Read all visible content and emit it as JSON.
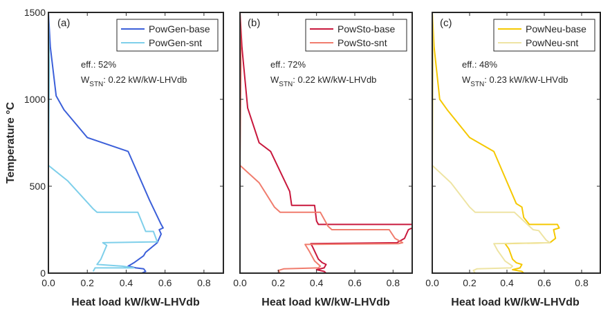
{
  "chart_data": [
    {
      "type": "line",
      "panel_label": "(a)",
      "xlabel": "Heat load kW/kW-LHVdb",
      "ylabel": "Temperature °C",
      "xlim": [
        0,
        0.9
      ],
      "ylim": [
        0,
        1500
      ],
      "xticks": [
        0,
        0.2,
        0.4,
        0.6,
        0.8
      ],
      "xtick_labels": [
        "0.0",
        "0.2",
        "0.4",
        "0.6",
        "0.8"
      ],
      "yticks": [
        0,
        500,
        1000,
        1500
      ],
      "ytick_labels": [
        "0",
        "500",
        "1000",
        "1500"
      ],
      "legend_position": "top-right",
      "annotations": {
        "eff": "eff.: 52%",
        "wstn_main": "W",
        "wstn_sub": "STN",
        "wstn_value": ": 0.22 kW/kW-LHVdb"
      },
      "series": [
        {
          "name": "PowGen-base",
          "color": "#3b5fd9",
          "points": [
            [
              0.0,
              1500
            ],
            [
              0.01,
              1300
            ],
            [
              0.04,
              1020
            ],
            [
              0.08,
              940
            ],
            [
              0.2,
              780
            ],
            [
              0.41,
              700
            ],
            [
              0.52,
              420
            ],
            [
              0.55,
              350
            ],
            [
              0.58,
              280
            ],
            [
              0.59,
              260
            ],
            [
              0.57,
              250
            ],
            [
              0.58,
              225
            ],
            [
              0.56,
              175
            ],
            [
              0.5,
              120
            ],
            [
              0.49,
              100
            ],
            [
              0.44,
              60
            ],
            [
              0.41,
              40
            ],
            [
              0.45,
              30
            ],
            [
              0.49,
              25
            ],
            [
              0.5,
              10
            ],
            [
              0.48,
              0
            ]
          ]
        },
        {
          "name": "PowGen-snt",
          "color": "#7ecfea",
          "points": [
            [
              0.0,
              1500
            ],
            [
              0.005,
              1200
            ],
            [
              0.0,
              620
            ],
            [
              0.1,
              530
            ],
            [
              0.23,
              370
            ],
            [
              0.25,
              350
            ],
            [
              0.46,
              350
            ],
            [
              0.5,
              240
            ],
            [
              0.54,
              240
            ],
            [
              0.56,
              180
            ],
            [
              0.28,
              175
            ],
            [
              0.3,
              160
            ],
            [
              0.27,
              80
            ],
            [
              0.25,
              50
            ],
            [
              0.38,
              40
            ],
            [
              0.44,
              30
            ],
            [
              0.24,
              30
            ],
            [
              0.23,
              10
            ]
          ]
        }
      ]
    },
    {
      "type": "line",
      "panel_label": "(b)",
      "xlabel": "Heat load kW/kW-LHVdb",
      "xlim": [
        0,
        0.9
      ],
      "ylim": [
        0,
        1500
      ],
      "xticks": [
        0,
        0.2,
        0.4,
        0.6,
        0.8
      ],
      "xtick_labels": [
        "0.0",
        "0.2",
        "0.4",
        "0.6",
        "0.8"
      ],
      "yticks": [
        0,
        500,
        1000,
        1500
      ],
      "legend_position": "top-right",
      "annotations": {
        "eff": "eff.: 72%",
        "wstn_main": "W",
        "wstn_sub": "STN",
        "wstn_value": ": 0.22 kW/kW-LHVdb"
      },
      "series": [
        {
          "name": "PowSto-base",
          "color": "#c8173c",
          "points": [
            [
              0.0,
              1500
            ],
            [
              0.01,
              1300
            ],
            [
              0.04,
              950
            ],
            [
              0.1,
              750
            ],
            [
              0.16,
              700
            ],
            [
              0.26,
              470
            ],
            [
              0.27,
              390
            ],
            [
              0.39,
              390
            ],
            [
              0.4,
              300
            ],
            [
              0.41,
              280
            ],
            [
              0.9,
              280
            ],
            [
              0.9,
              260
            ],
            [
              0.88,
              250
            ],
            [
              0.86,
              200
            ],
            [
              0.82,
              175
            ],
            [
              0.37,
              170
            ],
            [
              0.38,
              150
            ],
            [
              0.41,
              80
            ],
            [
              0.43,
              60
            ],
            [
              0.45,
              50
            ],
            [
              0.44,
              30
            ],
            [
              0.4,
              20
            ],
            [
              0.44,
              10
            ],
            [
              0.45,
              0
            ]
          ]
        },
        {
          "name": "PowSto-snt",
          "color": "#f07c6d",
          "points": [
            [
              0.0,
              1500
            ],
            [
              0.005,
              1200
            ],
            [
              0.0,
              620
            ],
            [
              0.1,
              520
            ],
            [
              0.18,
              380
            ],
            [
              0.21,
              350
            ],
            [
              0.42,
              350
            ],
            [
              0.46,
              270
            ],
            [
              0.48,
              250
            ],
            [
              0.78,
              250
            ],
            [
              0.81,
              200
            ],
            [
              0.85,
              175
            ],
            [
              0.83,
              170
            ],
            [
              0.34,
              165
            ],
            [
              0.36,
              130
            ],
            [
              0.39,
              70
            ],
            [
              0.42,
              40
            ],
            [
              0.41,
              30
            ],
            [
              0.23,
              25
            ],
            [
              0.2,
              15
            ],
            [
              0.21,
              0
            ]
          ]
        }
      ]
    },
    {
      "type": "line",
      "panel_label": "(c)",
      "xlabel": "Heat load kW/kW-LHVdb",
      "xlim": [
        0,
        0.9
      ],
      "ylim": [
        0,
        1500
      ],
      "xticks": [
        0,
        0.2,
        0.4,
        0.6,
        0.8
      ],
      "xtick_labels": [
        "0.0",
        "0.2",
        "0.4",
        "0.6",
        "0.8"
      ],
      "yticks": [
        0,
        500,
        1000,
        1500
      ],
      "legend_position": "top-right",
      "annotations": {
        "eff": "eff.: 48%",
        "wstn_main": "W",
        "wstn_sub": "STN",
        "wstn_value": ": 0.23 kW/kW-LHVdb"
      },
      "series": [
        {
          "name": "PowNeu-base",
          "color": "#f5c800",
          "points": [
            [
              0.0,
              1500
            ],
            [
              0.01,
              1300
            ],
            [
              0.04,
              1000
            ],
            [
              0.08,
              940
            ],
            [
              0.2,
              780
            ],
            [
              0.33,
              700
            ],
            [
              0.45,
              400
            ],
            [
              0.48,
              380
            ],
            [
              0.49,
              320
            ],
            [
              0.52,
              280
            ],
            [
              0.67,
              280
            ],
            [
              0.68,
              260
            ],
            [
              0.65,
              250
            ],
            [
              0.66,
              200
            ],
            [
              0.63,
              175
            ],
            [
              0.39,
              170
            ],
            [
              0.41,
              140
            ],
            [
              0.43,
              80
            ],
            [
              0.45,
              60
            ],
            [
              0.48,
              50
            ],
            [
              0.47,
              30
            ],
            [
              0.43,
              20
            ],
            [
              0.48,
              10
            ],
            [
              0.49,
              0
            ]
          ]
        },
        {
          "name": "PowNeu-snt",
          "color": "#eee4a3",
          "points": [
            [
              0.0,
              1500
            ],
            [
              0.005,
              1200
            ],
            [
              0.0,
              620
            ],
            [
              0.1,
              520
            ],
            [
              0.2,
              380
            ],
            [
              0.23,
              350
            ],
            [
              0.44,
              350
            ],
            [
              0.54,
              250
            ],
            [
              0.57,
              245
            ],
            [
              0.61,
              190
            ],
            [
              0.63,
              175
            ],
            [
              0.33,
              170
            ],
            [
              0.35,
              130
            ],
            [
              0.39,
              70
            ],
            [
              0.43,
              40
            ],
            [
              0.42,
              30
            ],
            [
              0.24,
              25
            ],
            [
              0.22,
              15
            ],
            [
              0.23,
              0
            ]
          ]
        }
      ]
    }
  ]
}
